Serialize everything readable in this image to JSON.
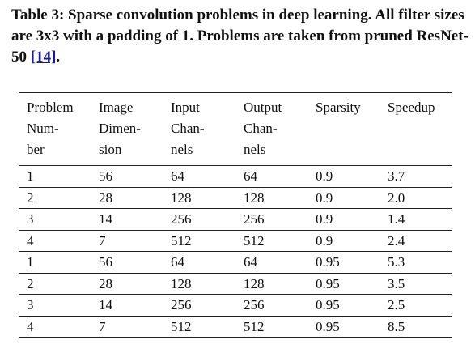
{
  "caption": {
    "label": "Table 3:",
    "text": " Sparse convolution problems in deep learning. All filter sizes are 3x3 with a padding of 1. Problems are taken from pruned ResNet-50 ",
    "ref": "[14]",
    "end": "."
  },
  "table": {
    "headers": [
      [
        "Problem",
        "Num-",
        "ber"
      ],
      [
        "Image",
        "Dimen-",
        "sion"
      ],
      [
        "Input",
        "Chan-",
        "nels"
      ],
      [
        "Output",
        "Chan-",
        "nels"
      ],
      [
        "Sparsity"
      ],
      [
        "Speedup"
      ]
    ],
    "rows": [
      [
        "1",
        "56",
        "64",
        "64",
        "0.9",
        "3.7"
      ],
      [
        "2",
        "28",
        "128",
        "128",
        "0.9",
        "2.0"
      ],
      [
        "3",
        "14",
        "256",
        "256",
        "0.9",
        "1.4"
      ],
      [
        "4",
        "7",
        "512",
        "512",
        "0.9",
        "2.4"
      ],
      [
        "1",
        "56",
        "64",
        "64",
        "0.95",
        "5.3"
      ],
      [
        "2",
        "28",
        "128",
        "128",
        "0.95",
        "3.5"
      ],
      [
        "3",
        "14",
        "256",
        "256",
        "0.95",
        "2.5"
      ],
      [
        "4",
        "7",
        "512",
        "512",
        "0.95",
        "8.5"
      ]
    ]
  }
}
